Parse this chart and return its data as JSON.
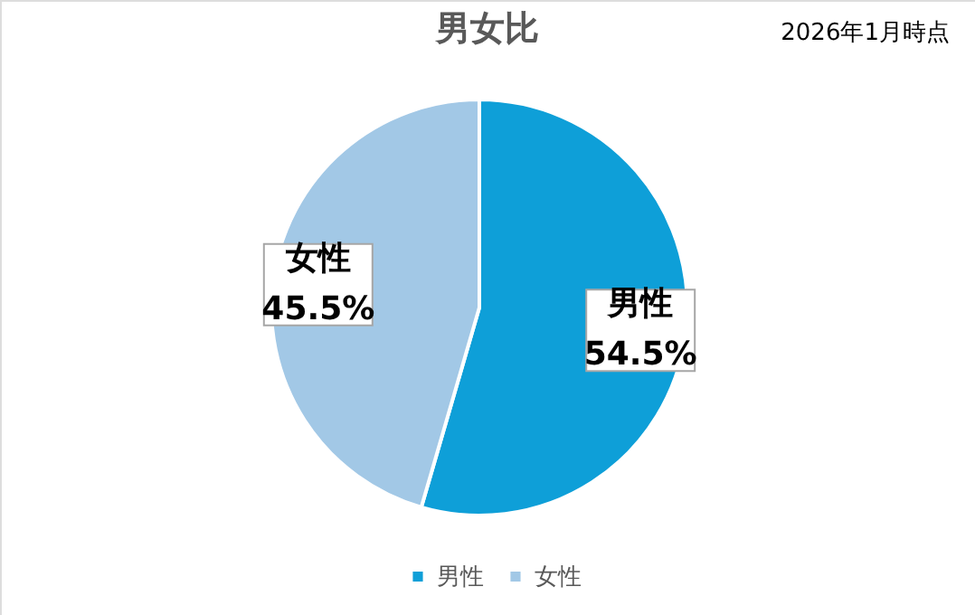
{
  "chart_data": {
    "type": "pie",
    "title": "男女比",
    "annotations": [
      "2026年1月時点"
    ],
    "categories": [
      "男性",
      "女性"
    ],
    "values": [
      54.5,
      45.5
    ],
    "colors": [
      "#0e9fd8",
      "#a2c8e6"
    ],
    "value_labels": [
      "54.5%",
      "45.5%"
    ],
    "legend": "bottom"
  }
}
